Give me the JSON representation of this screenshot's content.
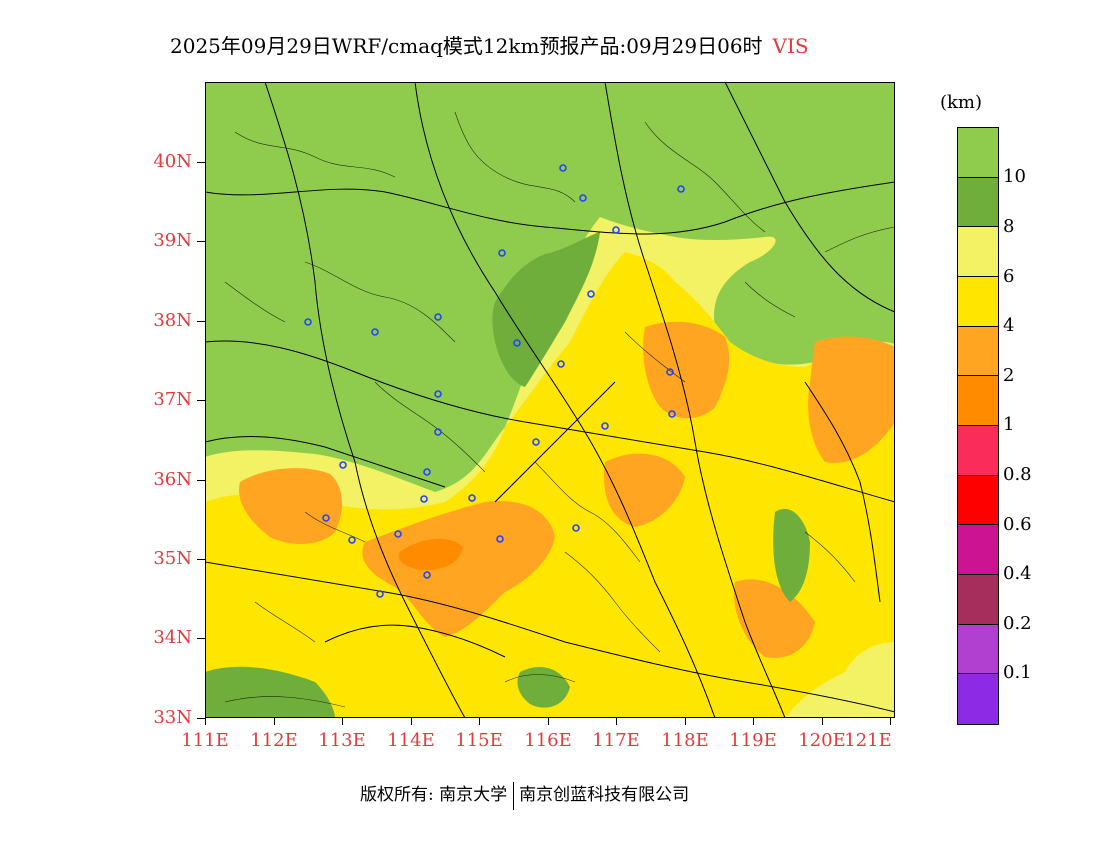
{
  "title": {
    "text": "2025年09月29日WRF/cmaq模式12km预报产品:09月29日06时",
    "variable": "VIS"
  },
  "axes": {
    "lat_labels": [
      "33N",
      "34N",
      "35N",
      "36N",
      "37N",
      "38N",
      "39N",
      "40N"
    ],
    "lon_labels": [
      "111E",
      "112E",
      "113E",
      "114E",
      "115E",
      "116E",
      "117E",
      "118E",
      "119E",
      "120E",
      "121E"
    ]
  },
  "legend": {
    "unit": "(km)",
    "labels": [
      "0.1",
      "0.2",
      "0.4",
      "0.6",
      "0.8",
      "1",
      "2",
      "4",
      "6",
      "8",
      "10"
    ],
    "colors": [
      "#8c8ce6",
      "#b13fd0",
      "#a62e5c",
      "#cc1493",
      "#ff0000",
      "#fa2d5a",
      "#ff8c00",
      "#ffa521",
      "#ffe600",
      "#f2f264",
      "#6fae3a",
      "#8fcc4e"
    ]
  },
  "map": {
    "colors": {
      "light_green": "#8fcc4e",
      "dark_green": "#6fae3a",
      "light_yellow": "#f2f264",
      "yellow": "#ffe600",
      "light_orange": "#ffa521",
      "orange": "#ff8c00",
      "boundary": "#000000",
      "station": "#2244ff"
    }
  },
  "footer": {
    "copyright": "版权所有: 南京大学",
    "company": "南京创蓝科技有限公司"
  }
}
